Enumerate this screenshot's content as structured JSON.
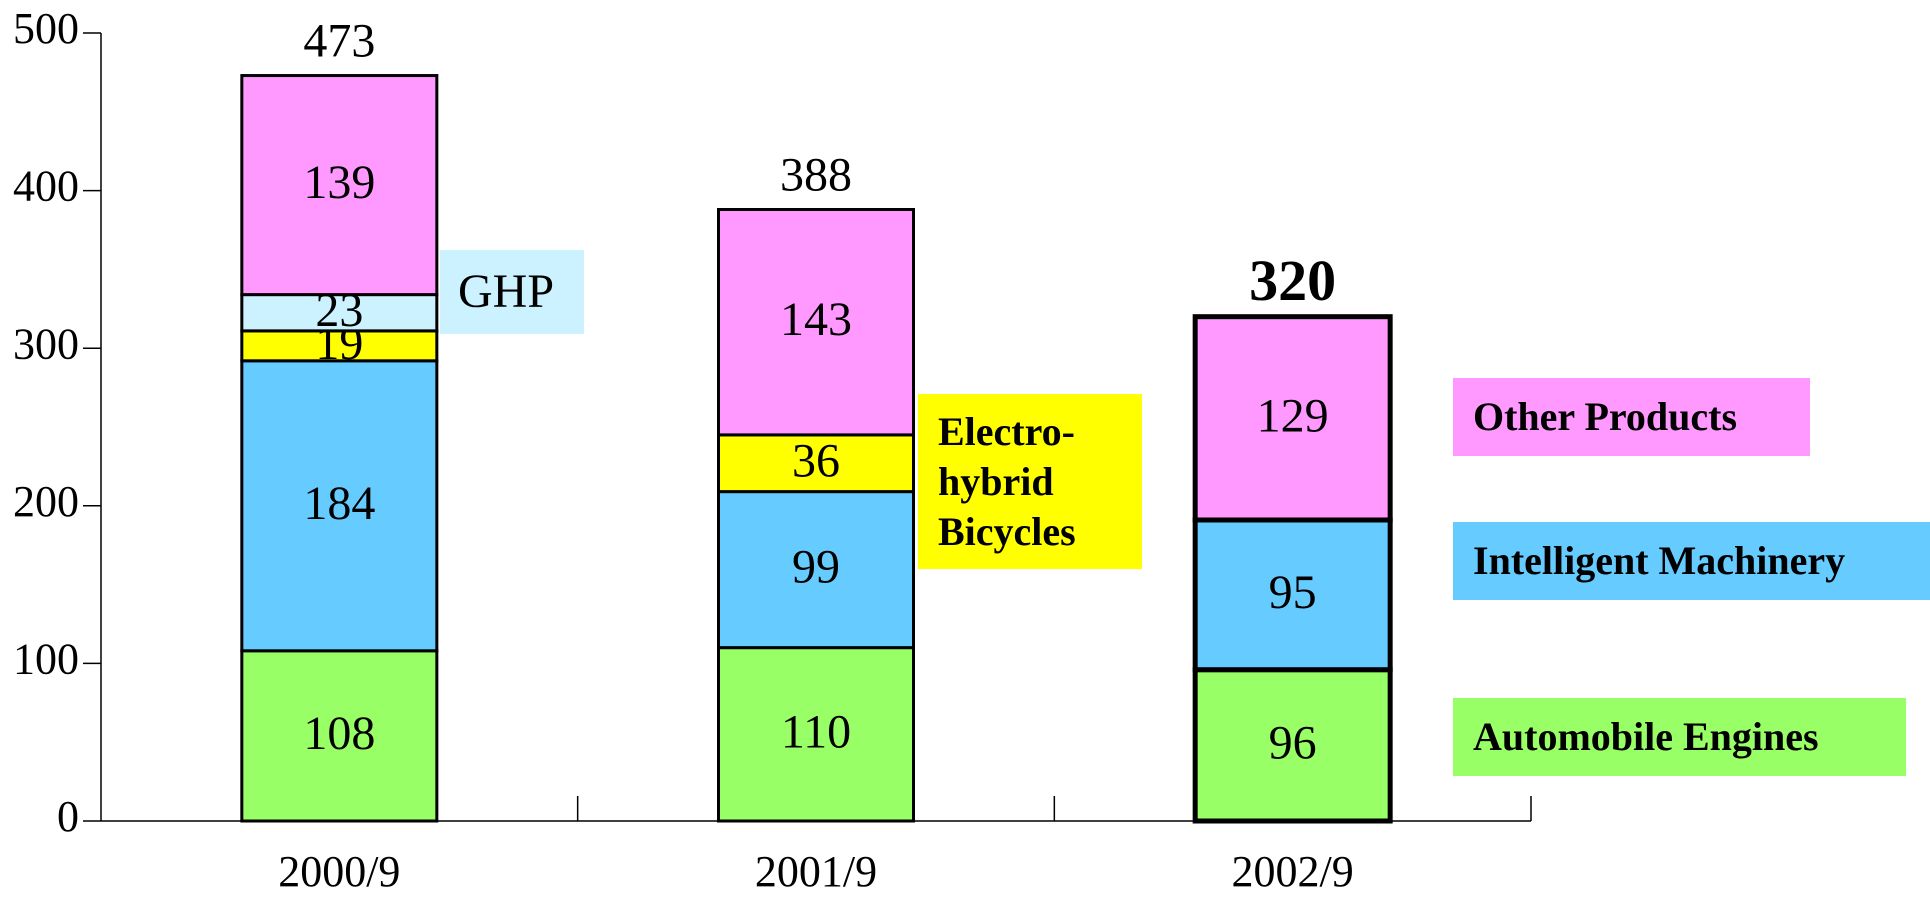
{
  "chart_data": {
    "type": "bar",
    "stacked": true,
    "categories": [
      "2000/9",
      "2001/9",
      "2002/9"
    ],
    "series": [
      {
        "name": "Automobile Engines",
        "color": "#99ff66",
        "values": [
          108,
          110,
          96
        ]
      },
      {
        "name": "Intelligent Machinery",
        "color": "#66ccff",
        "values": [
          184,
          99,
          95
        ]
      },
      {
        "name": "Electro-hybrid Bicycles",
        "color": "#ffff00",
        "values": [
          19,
          36,
          null
        ]
      },
      {
        "name": "GHP",
        "color": "#ccf2ff",
        "values": [
          23,
          null,
          null
        ]
      },
      {
        "name": "Other Products",
        "color": "#ff99ff",
        "values": [
          139,
          143,
          129
        ]
      }
    ],
    "totals": [
      473,
      388,
      320
    ],
    "ylim": [
      0,
      500
    ],
    "yticks": [
      0,
      100,
      200,
      300,
      400,
      500
    ]
  }
}
